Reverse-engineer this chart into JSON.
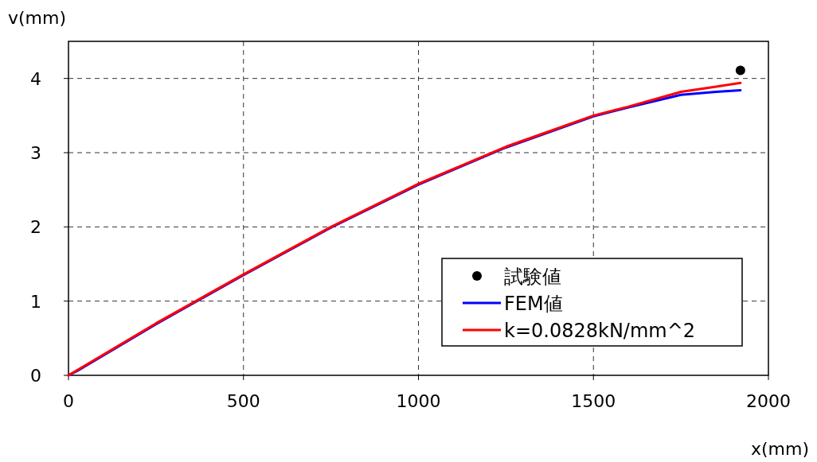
{
  "chart_data": {
    "type": "line",
    "xlabel": "x(mm)",
    "ylabel": "v(mm)",
    "xlim": [
      0,
      2000
    ],
    "ylim": [
      0,
      4.5
    ],
    "xticks": [
      0,
      500,
      1000,
      1500,
      2000
    ],
    "yticks": [
      0,
      1,
      2,
      3,
      4
    ],
    "grid": true,
    "legend": "bottom right",
    "series": [
      {
        "name": "試験値",
        "type": "scatter",
        "marker": "circle",
        "color": "#000000",
        "x": [
          1920
        ],
        "values": [
          4.11
        ]
      },
      {
        "name": "FEM値",
        "color": "#0000ff",
        "x": [
          0,
          25,
          250,
          500,
          750,
          1000,
          1250,
          1500,
          1600,
          1750,
          1850,
          1920
        ],
        "values": [
          0,
          0.06,
          0.69,
          1.35,
          1.99,
          2.57,
          3.07,
          3.49,
          3.61,
          3.78,
          3.82,
          3.84
        ]
      },
      {
        "name": "k=0.0828kN/mm^2",
        "color": "#ff0000",
        "x": [
          0,
          25,
          250,
          500,
          750,
          1000,
          1250,
          1500,
          1600,
          1750,
          1850,
          1920
        ],
        "values": [
          0,
          0.07,
          0.7,
          1.36,
          2.0,
          2.58,
          3.08,
          3.5,
          3.62,
          3.82,
          3.89,
          3.94
        ]
      }
    ]
  }
}
